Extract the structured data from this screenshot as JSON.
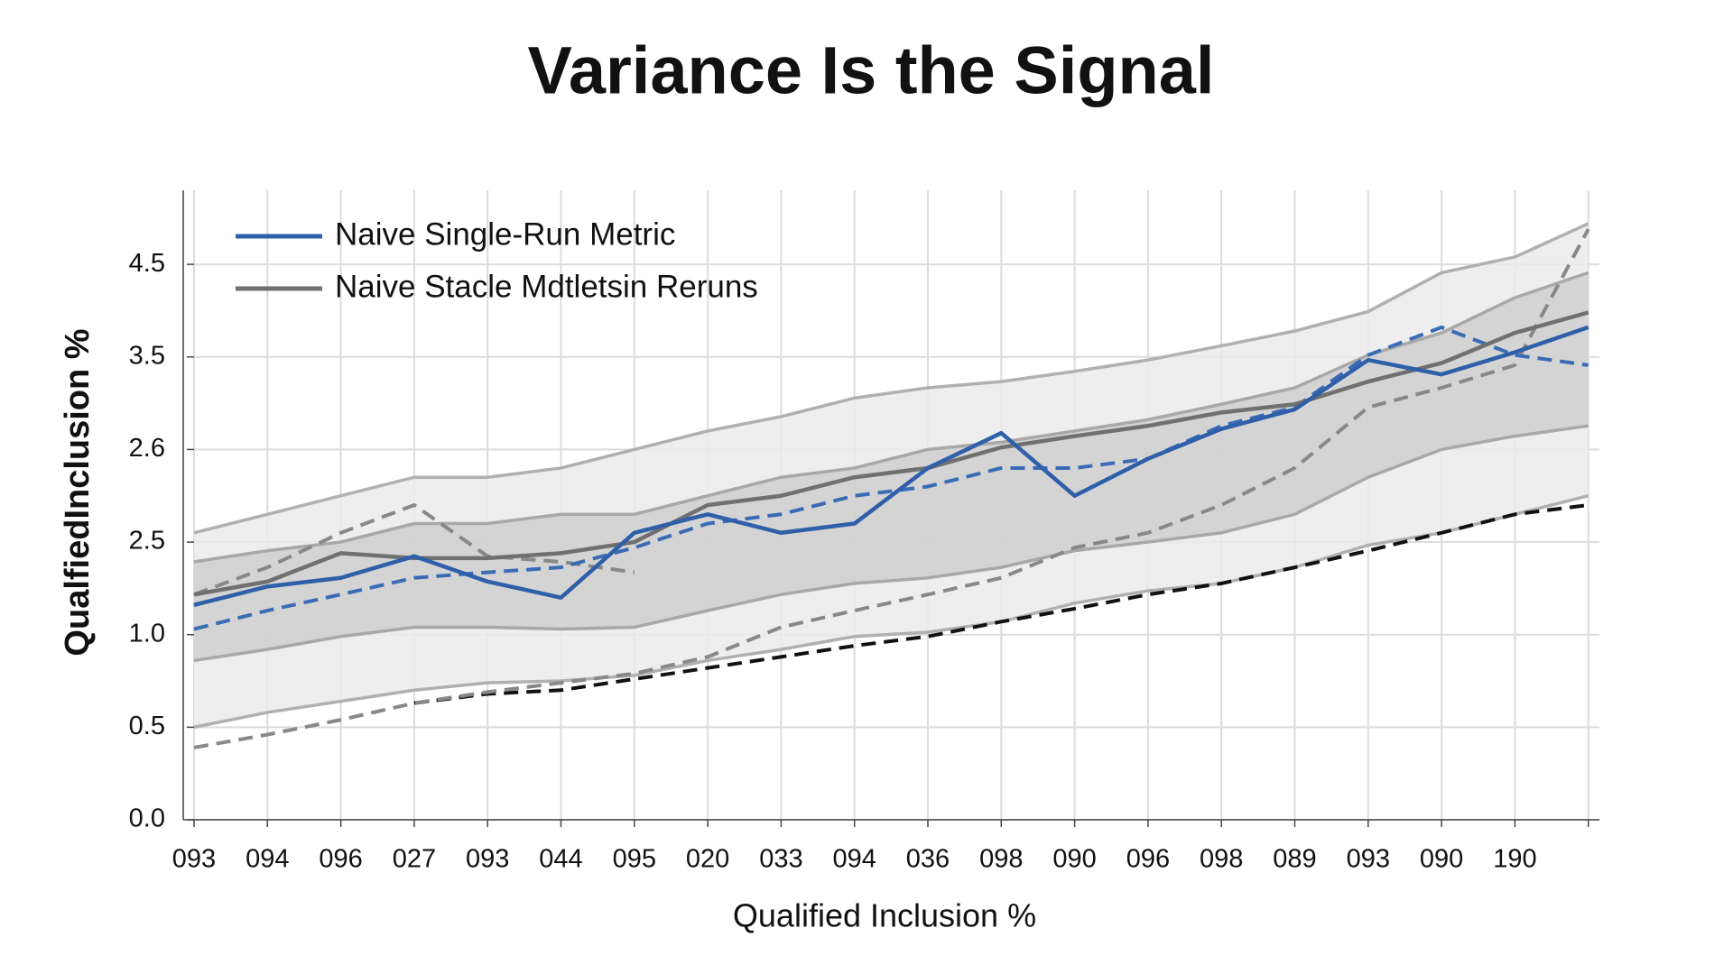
{
  "chart_data": {
    "type": "line",
    "title": "Variance Is the Signal",
    "xlabel": "Qualified Inclusion %",
    "ylabel": "QualfiedInclusion %",
    "categories": [
      "093",
      "094",
      "096",
      "027",
      "093",
      "044",
      "095",
      "020",
      "033",
      "094",
      "036",
      "098",
      "090",
      "096",
      "098",
      "089",
      "093",
      "090",
      "190",
      null
    ],
    "ylim": [
      0,
      5.3
    ],
    "yticks": [
      {
        "value": 0,
        "label": "0.0"
      },
      0.5,
      {
        "value": 1,
        "label": "1.0"
      },
      2.5,
      2.6,
      3.5,
      4.5
    ],
    "grid": true,
    "legend": "upper left",
    "bands": [
      {
        "color": "#ebebeb",
        "edge": "#b0b0b0",
        "upper": [
          2.51,
          2.53,
          2.55,
          2.57,
          2.57,
          2.58,
          2.6,
          2.78,
          2.92,
          3.1,
          3.2,
          3.26,
          3.36,
          3.47,
          3.62,
          3.78,
          3.99,
          4.41,
          4.58,
          4.94
        ],
        "lower": [
          0.5,
          0.58,
          0.64,
          0.7,
          0.74,
          0.75,
          0.78,
          0.86,
          0.92,
          0.99,
          1.04,
          1.21,
          1.51,
          1.71,
          1.83,
          2.09,
          2.45,
          2.51,
          2.53,
          2.55
        ]
      },
      {
        "color": "#cfcfcf",
        "edge": "#a8a8a8",
        "upper": [
          2.18,
          2.36,
          2.5,
          2.52,
          2.52,
          2.53,
          2.53,
          2.55,
          2.57,
          2.58,
          2.6,
          2.67,
          2.78,
          2.89,
          3.04,
          3.2,
          3.52,
          3.76,
          4.14,
          4.41
        ],
        "lower": [
          0.86,
          0.92,
          0.99,
          1.12,
          1.12,
          1.09,
          1.12,
          1.39,
          1.65,
          1.83,
          1.92,
          2.09,
          2.36,
          2.5,
          2.51,
          2.53,
          2.57,
          2.6,
          2.73,
          2.83
        ]
      }
    ],
    "series": [
      {
        "color": "#111111",
        "dashed": true,
        "values": [
          null,
          null,
          null,
          0.63,
          0.68,
          0.7,
          0.76,
          0.82,
          0.88,
          0.94,
          0.99,
          1.21,
          1.42,
          1.65,
          1.83,
          2.09,
          2.36,
          2.51,
          2.53,
          2.54
        ]
      },
      {
        "color": "#888888",
        "dashed": true,
        "values": [
          0.39,
          0.46,
          0.54,
          0.63,
          0.69,
          0.74,
          0.79,
          0.88,
          1.12,
          1.39,
          1.65,
          1.92,
          2.41,
          2.51,
          2.54,
          2.58,
          3.01,
          3.2,
          3.42,
          4.88
        ]
      },
      {
        "color": "#888888",
        "dashed": true,
        "values": [
          1.65,
          2.09,
          2.51,
          2.54,
          2.27,
          2.18,
          2.01,
          null,
          null,
          null,
          null,
          null,
          null,
          null,
          null,
          null,
          null,
          null,
          null,
          null
        ]
      },
      {
        "color": "#3a6bb5",
        "dashed": true,
        "values": [
          1.09,
          1.39,
          1.65,
          1.92,
          2.01,
          2.09,
          2.41,
          2.52,
          2.53,
          2.55,
          2.56,
          2.58,
          2.58,
          2.59,
          2.83,
          3.01,
          3.52,
          3.82,
          3.52,
          3.42
        ]
      },
      {
        "name": "Naive Stacle Mdtletsin Reruns",
        "color": "#707070",
        "dashed": false,
        "values": [
          1.65,
          1.86,
          2.32,
          2.24,
          2.24,
          2.32,
          2.5,
          2.54,
          2.55,
          2.57,
          2.58,
          2.62,
          2.73,
          2.83,
          2.96,
          3.04,
          3.26,
          3.44,
          3.76,
          3.98
        ]
      },
      {
        "name": "Naive Single-Run Metric",
        "color": "#2f5fa8",
        "dashed": false,
        "values": [
          1.48,
          1.78,
          1.92,
          2.27,
          1.86,
          1.6,
          2.51,
          2.53,
          2.51,
          2.52,
          2.58,
          2.76,
          2.55,
          2.59,
          2.8,
          2.99,
          3.47,
          3.33,
          3.55,
          3.82
        ]
      }
    ]
  }
}
